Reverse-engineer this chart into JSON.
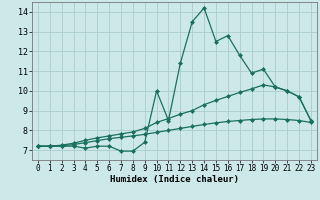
{
  "xlabel": "Humidex (Indice chaleur)",
  "bg_color": "#cce8e8",
  "grid_color": "#aacccc",
  "line_color": "#1a7060",
  "xlim": [
    -0.5,
    23.5
  ],
  "ylim": [
    6.5,
    14.5
  ],
  "xticks": [
    0,
    1,
    2,
    3,
    4,
    5,
    6,
    7,
    8,
    9,
    10,
    11,
    12,
    13,
    14,
    15,
    16,
    17,
    18,
    19,
    20,
    21,
    22,
    23
  ],
  "yticks": [
    7,
    8,
    9,
    10,
    11,
    12,
    13,
    14
  ],
  "line1_x": [
    0,
    1,
    2,
    3,
    4,
    5,
    6,
    7,
    8,
    9,
    10,
    11,
    12,
    13,
    14,
    15,
    16,
    17,
    18,
    19,
    20,
    21,
    22,
    23
  ],
  "line1_y": [
    7.2,
    7.2,
    7.2,
    7.2,
    7.1,
    7.2,
    7.2,
    6.95,
    6.95,
    7.4,
    10.0,
    8.5,
    11.4,
    13.5,
    14.2,
    12.5,
    12.8,
    11.8,
    10.9,
    11.1,
    10.2,
    10.0,
    9.7,
    8.5
  ],
  "line2_x": [
    0,
    1,
    2,
    3,
    4,
    5,
    6,
    7,
    8,
    9,
    10,
    11,
    12,
    13,
    14,
    15,
    16,
    17,
    18,
    19,
    20,
    21,
    22,
    23
  ],
  "line2_y": [
    7.2,
    7.2,
    7.25,
    7.35,
    7.5,
    7.62,
    7.72,
    7.82,
    7.92,
    8.1,
    8.4,
    8.6,
    8.82,
    9.0,
    9.3,
    9.52,
    9.72,
    9.92,
    10.1,
    10.3,
    10.2,
    10.0,
    9.7,
    8.5
  ],
  "line3_x": [
    0,
    1,
    2,
    3,
    4,
    5,
    6,
    7,
    8,
    9,
    10,
    11,
    12,
    13,
    14,
    15,
    16,
    17,
    18,
    19,
    20,
    21,
    22,
    23
  ],
  "line3_y": [
    7.2,
    7.2,
    7.22,
    7.28,
    7.38,
    7.48,
    7.58,
    7.65,
    7.72,
    7.8,
    7.9,
    8.0,
    8.1,
    8.2,
    8.3,
    8.38,
    8.45,
    8.5,
    8.55,
    8.58,
    8.58,
    8.55,
    8.5,
    8.4
  ],
  "marker_size": 2.0,
  "line_width": 0.9,
  "tick_fontsize": 5.5,
  "xlabel_fontsize": 6.5
}
